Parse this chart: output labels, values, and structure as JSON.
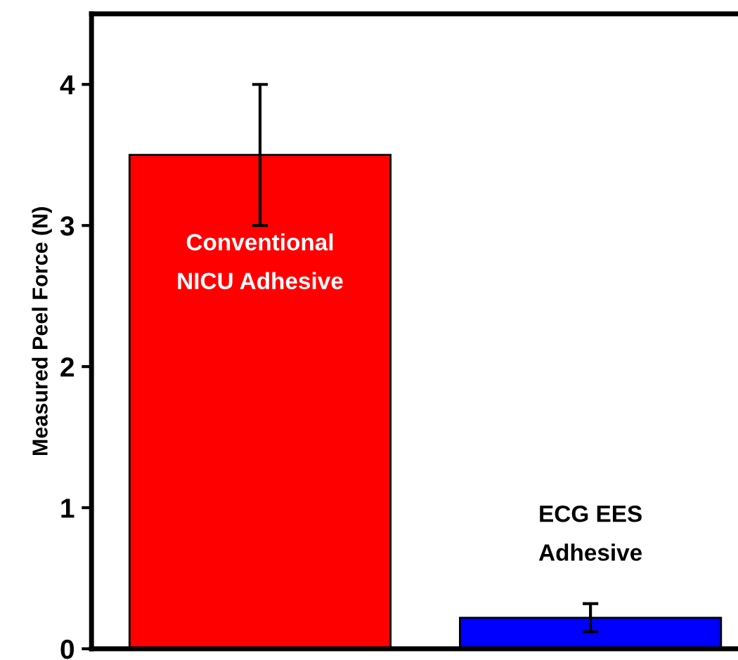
{
  "chart_data": {
    "type": "bar",
    "ylabel": "Measured Peel Force (N)",
    "categories": [
      "Conventional\nNICU Adhesive",
      "ECG EES\nAdhesive"
    ],
    "values": [
      3.5,
      0.22
    ],
    "colors": [
      "#ff0000",
      "#0000ff"
    ],
    "errors": [
      0.5,
      0.1
    ],
    "ylim": [
      0,
      4.5
    ],
    "yticks": [
      0,
      1,
      2,
      3,
      4
    ],
    "grid": false,
    "tick_labels": "y"
  }
}
